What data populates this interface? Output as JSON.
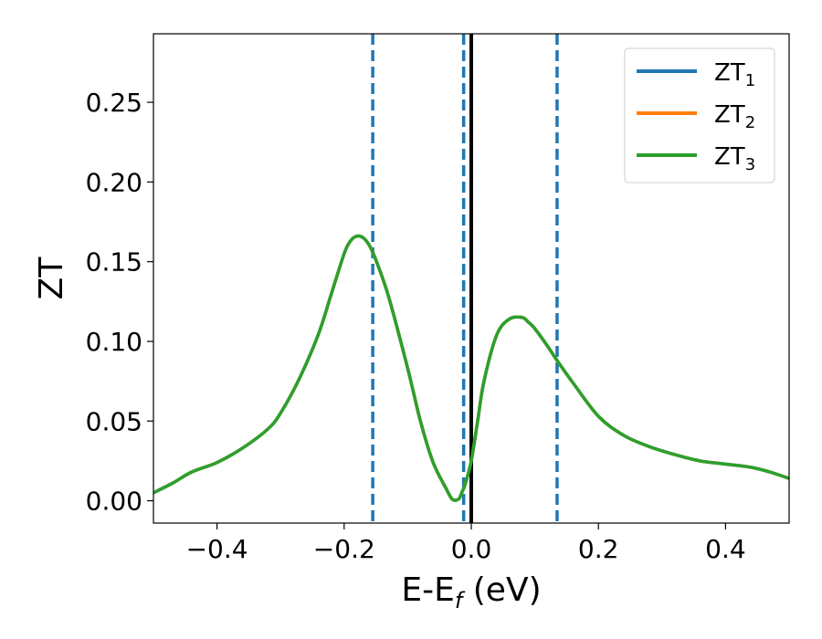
{
  "chart_data": {
    "type": "line",
    "title": "",
    "xlabel": "E-E",
    "xlabel_sub": "f",
    "xlabel_unit": " (eV)",
    "ylabel": "ZT",
    "xlim": [
      -0.5,
      0.5
    ],
    "ylim": [
      -0.014,
      0.293
    ],
    "xticks": [
      -0.4,
      -0.2,
      0.0,
      0.2,
      0.4
    ],
    "xtick_labels": [
      "−0.4",
      "−0.2",
      "0.0",
      "0.2",
      "0.4"
    ],
    "yticks": [
      0.0,
      0.05,
      0.1,
      0.15,
      0.2,
      0.25
    ],
    "ytick_labels": [
      "0.00",
      "0.05",
      "0.10",
      "0.15",
      "0.20",
      "0.25"
    ],
    "grid": false,
    "legend_position": "top-right",
    "vertical_lines": [
      {
        "x": -0.155,
        "style": "dashed",
        "color": "#1f77b4"
      },
      {
        "x": -0.012,
        "style": "dashed",
        "color": "#1f77b4"
      },
      {
        "x": 0.0,
        "style": "solid",
        "color": "#000000"
      },
      {
        "x": 0.135,
        "style": "dashed",
        "color": "#1f77b4"
      }
    ],
    "x": [
      -0.5,
      -0.47,
      -0.44,
      -0.4,
      -0.36,
      -0.32,
      -0.3,
      -0.27,
      -0.24,
      -0.22,
      -0.2,
      -0.19,
      -0.18,
      -0.17,
      -0.16,
      -0.15,
      -0.13,
      -0.1,
      -0.08,
      -0.06,
      -0.04,
      -0.03,
      -0.02,
      -0.015,
      -0.01,
      0.0,
      0.01,
      0.02,
      0.04,
      0.06,
      0.08,
      0.09,
      0.1,
      0.12,
      0.135,
      0.16,
      0.2,
      0.24,
      0.28,
      0.32,
      0.36,
      0.4,
      0.44,
      0.47,
      0.5
    ],
    "series": [
      {
        "name": "ZT",
        "name_sub": "1",
        "color": "#1f77b4",
        "values": [
          0.005,
          0.011,
          0.018,
          0.024,
          0.033,
          0.045,
          0.055,
          0.077,
          0.105,
          0.13,
          0.155,
          0.163,
          0.166,
          0.165,
          0.16,
          0.151,
          0.128,
          0.083,
          0.05,
          0.024,
          0.008,
          0.001,
          0.001,
          0.005,
          0.01,
          0.025,
          0.05,
          0.075,
          0.104,
          0.114,
          0.115,
          0.112,
          0.108,
          0.097,
          0.088,
          0.074,
          0.053,
          0.041,
          0.034,
          0.029,
          0.025,
          0.023,
          0.021,
          0.018,
          0.014
        ]
      },
      {
        "name": "ZT",
        "name_sub": "2",
        "color": "#ff7f0e",
        "values": [
          0.005,
          0.011,
          0.018,
          0.024,
          0.033,
          0.045,
          0.055,
          0.077,
          0.105,
          0.13,
          0.155,
          0.163,
          0.166,
          0.165,
          0.16,
          0.151,
          0.128,
          0.083,
          0.05,
          0.024,
          0.008,
          0.001,
          0.001,
          0.005,
          0.01,
          0.025,
          0.05,
          0.075,
          0.104,
          0.114,
          0.115,
          0.112,
          0.108,
          0.097,
          0.088,
          0.074,
          0.053,
          0.041,
          0.034,
          0.029,
          0.025,
          0.023,
          0.021,
          0.018,
          0.014
        ]
      },
      {
        "name": "ZT",
        "name_sub": "3",
        "color": "#2ca02c",
        "values": [
          0.005,
          0.011,
          0.018,
          0.024,
          0.033,
          0.045,
          0.055,
          0.077,
          0.105,
          0.13,
          0.155,
          0.163,
          0.166,
          0.165,
          0.16,
          0.151,
          0.128,
          0.083,
          0.05,
          0.024,
          0.008,
          0.001,
          0.001,
          0.005,
          0.01,
          0.025,
          0.05,
          0.075,
          0.104,
          0.114,
          0.115,
          0.112,
          0.108,
          0.097,
          0.088,
          0.074,
          0.053,
          0.041,
          0.034,
          0.029,
          0.025,
          0.023,
          0.021,
          0.018,
          0.014
        ]
      }
    ]
  }
}
